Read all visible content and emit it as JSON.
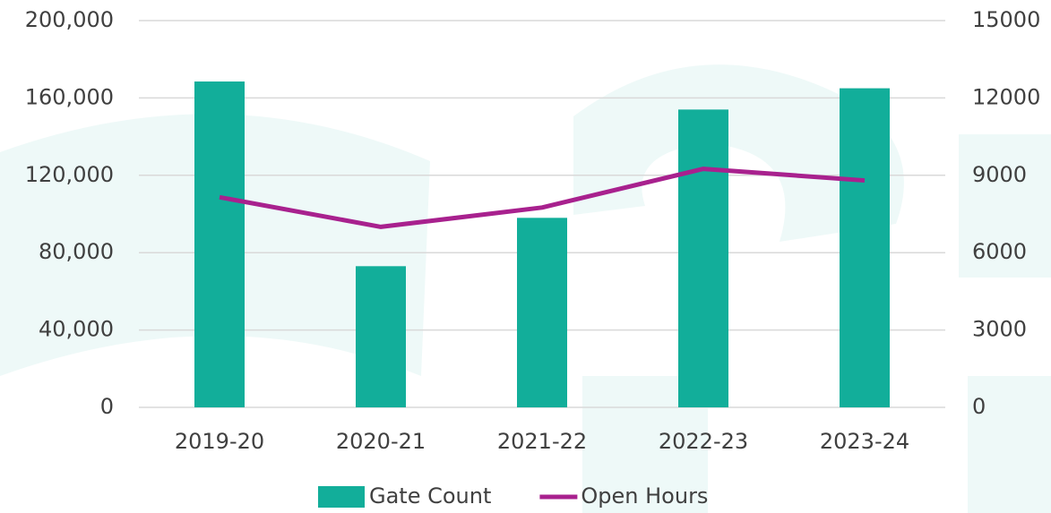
{
  "chart_data": {
    "type": "bar_line",
    "categories": [
      "2019-20",
      "2020-21",
      "2021-22",
      "2022-23",
      "2023-24"
    ],
    "series": [
      {
        "name": "Gate Count",
        "type": "bar",
        "color": "#12ae9a",
        "values": [
          168500,
          73000,
          98000,
          154000,
          165000
        ]
      },
      {
        "name": "Open Hours",
        "type": "line",
        "axis": "y2",
        "color": "#a8218e",
        "values": [
          8150,
          7000,
          7750,
          9250,
          8800
        ]
      }
    ],
    "ylim": [
      0,
      200000
    ],
    "yticks": [
      0,
      {
        "value": 40000,
        "label": "40,000"
      },
      {
        "value": 80000,
        "label": "80,000"
      },
      {
        "value": 120000,
        "label": "120,000"
      },
      {
        "value": 160000,
        "label": "160,000"
      },
      {
        "value": 200000,
        "label": "200,000"
      }
    ],
    "y2lim": [
      0,
      15000
    ],
    "y2ticks": [
      0,
      3000,
      6000,
      9000,
      12000,
      15000
    ],
    "grid": true,
    "legend": "bottom"
  }
}
